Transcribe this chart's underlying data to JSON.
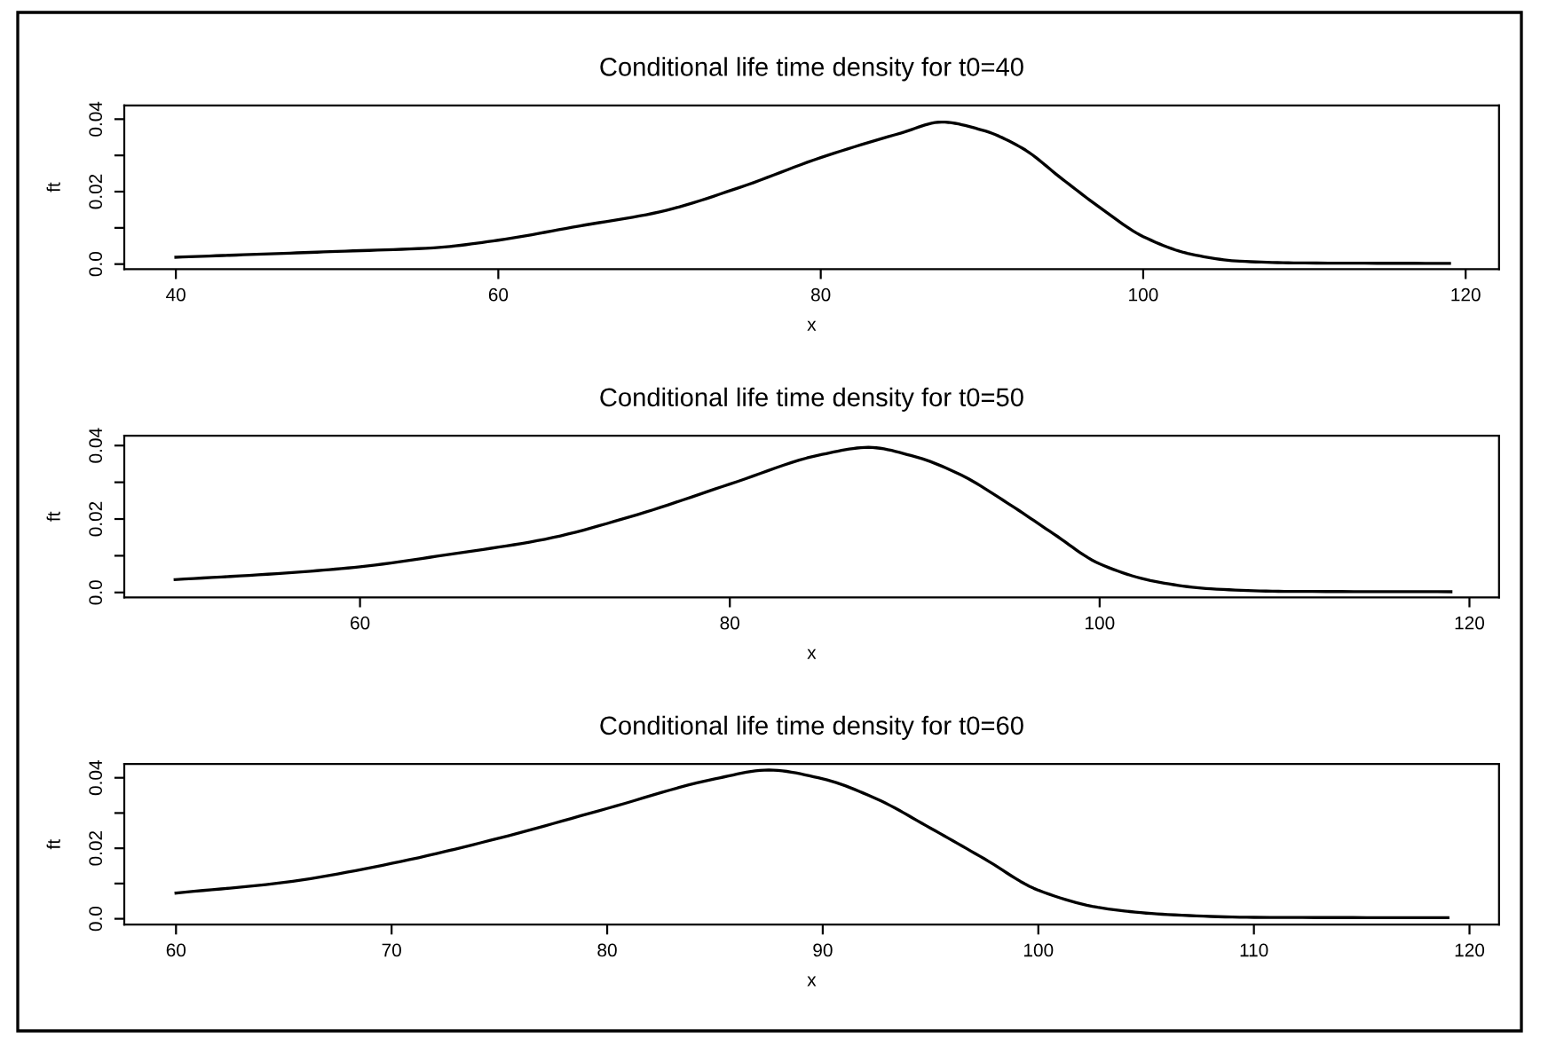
{
  "chart_data": [
    {
      "type": "line",
      "title": "Conditional life time density for t0=40",
      "xlabel": "x",
      "ylabel": "ft",
      "x": [
        40,
        45,
        50,
        56,
        60,
        65,
        70,
        75,
        80,
        85,
        87.5,
        90,
        92.5,
        95,
        97.5,
        100,
        103,
        106,
        110,
        119
      ],
      "values": [
        0.0019,
        0.0027,
        0.0035,
        0.0045,
        0.0066,
        0.0105,
        0.0144,
        0.0212,
        0.0294,
        0.0362,
        0.0392,
        0.037,
        0.032,
        0.0234,
        0.015,
        0.0076,
        0.0027,
        0.0008,
        0.0003,
        0.0002
      ],
      "xlim": [
        36.8,
        122.07
      ],
      "ylim": [
        -0.0014,
        0.0438
      ],
      "xticks": [
        40,
        60,
        80,
        100,
        120
      ],
      "yticks": [
        {
          "value": 0,
          "label": "0.0"
        },
        {
          "value": 0.01,
          "label": null
        },
        {
          "value": 0.02,
          "label": "0.02"
        },
        {
          "value": 0.03,
          "label": null
        },
        {
          "value": 0.04,
          "label": "0.04"
        }
      ]
    },
    {
      "type": "line",
      "title": "Conditional life time density for t0=50",
      "xlabel": "x",
      "ylabel": "ft",
      "x": [
        50,
        56,
        60,
        65,
        70,
        75,
        80,
        85,
        87.5,
        90,
        92.5,
        95,
        97.5,
        100,
        103,
        106,
        110,
        119
      ],
      "values": [
        0.0035,
        0.0053,
        0.007,
        0.0105,
        0.0145,
        0.0212,
        0.0295,
        0.0376,
        0.0395,
        0.037,
        0.032,
        0.0244,
        0.016,
        0.0078,
        0.003,
        0.001,
        0.0003,
        0.0002
      ],
      "xlim": [
        47.25,
        121.6
      ],
      "ylim": [
        -0.00135,
        0.04266
      ],
      "xticks": [
        60,
        80,
        100,
        120
      ],
      "yticks": [
        {
          "value": 0,
          "label": "0.0"
        },
        {
          "value": 0.01,
          "label": null
        },
        {
          "value": 0.02,
          "label": "0.02"
        },
        {
          "value": 0.03,
          "label": null
        },
        {
          "value": 0.04,
          "label": "0.04"
        }
      ]
    },
    {
      "type": "line",
      "title": "Conditional life time density for t0=60",
      "xlabel": "x",
      "ylabel": "ft",
      "x": [
        60,
        65,
        70,
        75,
        80,
        85,
        87.5,
        90,
        92.5,
        95,
        97.5,
        100,
        103,
        106,
        110,
        119
      ],
      "values": [
        0.0073,
        0.0103,
        0.0157,
        0.0229,
        0.0313,
        0.0397,
        0.0422,
        0.0397,
        0.034,
        0.0257,
        0.017,
        0.0081,
        0.003,
        0.0012,
        0.0004,
        0.0003
      ],
      "xlim": [
        57.6,
        121.37
      ],
      "ylim": [
        -0.00166,
        0.0439
      ],
      "xticks": [
        60,
        70,
        80,
        90,
        100,
        110,
        120
      ],
      "yticks": [
        {
          "value": 0,
          "label": "0.0"
        },
        {
          "value": 0.01,
          "label": null
        },
        {
          "value": 0.02,
          "label": "0.02"
        },
        {
          "value": 0.03,
          "label": null
        },
        {
          "value": 0.04,
          "label": "0.04"
        }
      ]
    }
  ]
}
